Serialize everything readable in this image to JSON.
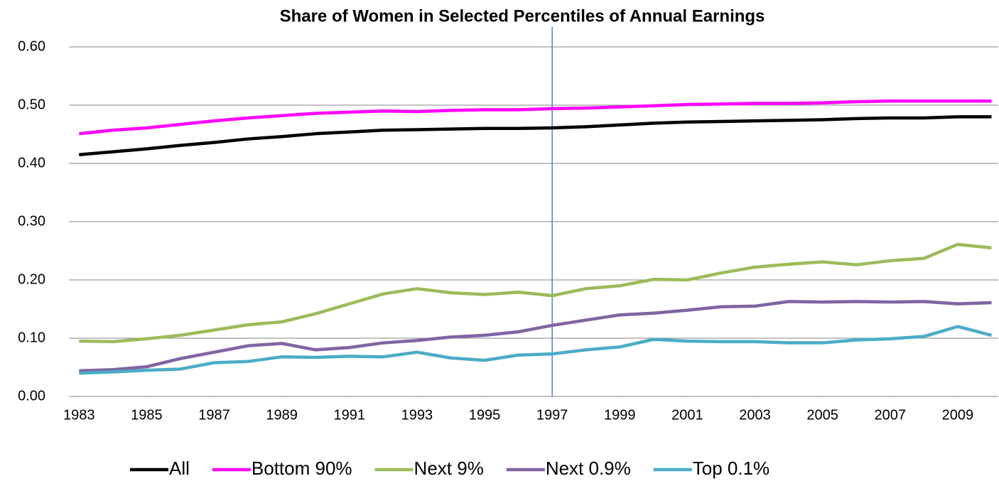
{
  "chart_data": {
    "type": "line",
    "title": "Share of Women in Selected Percentiles of Annual Earnings",
    "x": [
      1983,
      1984,
      1985,
      1986,
      1987,
      1988,
      1989,
      1990,
      1991,
      1992,
      1993,
      1994,
      1995,
      1996,
      1997,
      1998,
      1999,
      2000,
      2001,
      2002,
      2003,
      2004,
      2005,
      2006,
      2007,
      2008,
      2009,
      2010
    ],
    "xlim": [
      1982.7,
      2010.2
    ],
    "xticks": [
      1983,
      1985,
      1987,
      1989,
      1991,
      1993,
      1995,
      1997,
      1999,
      2001,
      2003,
      2005,
      2007,
      2009
    ],
    "ylim": [
      0,
      0.6
    ],
    "yticks": [
      {
        "value": 0,
        "label": "0.00"
      },
      {
        "value": 0.1,
        "label": "0.10"
      },
      {
        "value": 0.2,
        "label": "0.20"
      },
      {
        "value": 0.3,
        "label": "0.30"
      },
      {
        "value": 0.4,
        "label": "0.40"
      },
      {
        "value": 0.5,
        "label": "0.50"
      },
      {
        "value": 0.6,
        "label": "0.60"
      }
    ],
    "grid": true,
    "vline": 1997,
    "vline_color": "#4f81bd",
    "legend": "bottom",
    "series": [
      {
        "name": "All",
        "color": "#000000",
        "values": [
          0.415,
          0.42,
          0.425,
          0.431,
          0.436,
          0.442,
          0.446,
          0.451,
          0.454,
          0.457,
          0.458,
          0.459,
          0.46,
          0.46,
          0.461,
          0.463,
          0.466,
          0.469,
          0.471,
          0.472,
          0.473,
          0.474,
          0.475,
          0.477,
          0.478,
          0.478,
          0.48,
          0.48
        ]
      },
      {
        "name": "Bottom 90%",
        "color": "#ff00ff",
        "values": [
          0.451,
          0.457,
          0.461,
          0.467,
          0.473,
          0.478,
          0.482,
          0.486,
          0.488,
          0.49,
          0.489,
          0.491,
          0.492,
          0.492,
          0.494,
          0.495,
          0.497,
          0.499,
          0.501,
          0.502,
          0.503,
          0.503,
          0.504,
          0.506,
          0.507,
          0.507,
          0.507,
          0.507
        ]
      },
      {
        "name": "Next 9%",
        "color": "#9bbb59",
        "values": [
          0.095,
          0.094,
          0.099,
          0.105,
          0.114,
          0.123,
          0.128,
          0.142,
          0.159,
          0.176,
          0.185,
          0.178,
          0.175,
          0.179,
          0.173,
          0.185,
          0.19,
          0.201,
          0.2,
          0.212,
          0.222,
          0.227,
          0.231,
          0.226,
          0.233,
          0.237,
          0.261,
          0.255
        ]
      },
      {
        "name": "Next 0.9%",
        "color": "#8064a2",
        "values": [
          0.044,
          0.046,
          0.051,
          0.065,
          0.076,
          0.087,
          0.091,
          0.08,
          0.084,
          0.092,
          0.096,
          0.102,
          0.105,
          0.111,
          0.122,
          0.131,
          0.14,
          0.143,
          0.148,
          0.154,
          0.155,
          0.163,
          0.162,
          0.163,
          0.162,
          0.163,
          0.159,
          0.161
        ]
      },
      {
        "name": "Top 0.1%",
        "color": "#4bacc6",
        "values": [
          0.04,
          0.042,
          0.045,
          0.047,
          0.058,
          0.06,
          0.068,
          0.067,
          0.069,
          0.068,
          0.076,
          0.066,
          0.062,
          0.071,
          0.073,
          0.08,
          0.085,
          0.098,
          0.095,
          0.094,
          0.094,
          0.092,
          0.092,
          0.097,
          0.099,
          0.103,
          0.12,
          0.105
        ]
      }
    ]
  }
}
